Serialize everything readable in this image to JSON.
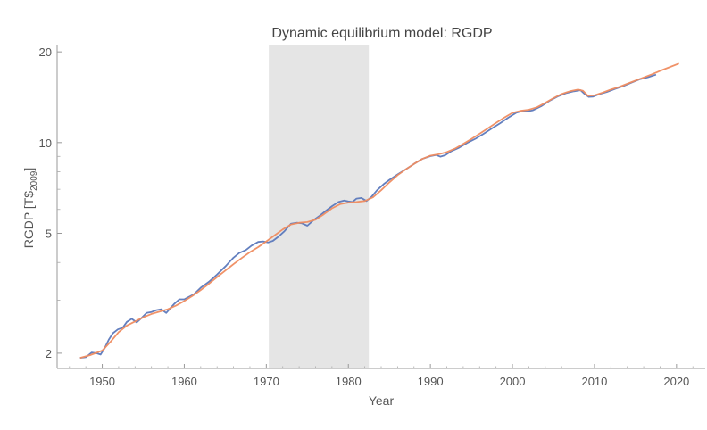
{
  "chart_data": {
    "type": "line",
    "title": "Dynamic equilibrium model: RGDP",
    "xlabel": "Year",
    "ylabel_main": "RGDP [T$",
    "ylabel_sub": "2009",
    "ylabel_close": "]",
    "xlim": [
      1944.5,
      2023.5
    ],
    "ylim": [
      1.78,
      21.0
    ],
    "yscale": "log",
    "x_ticks": [
      1950,
      1960,
      1970,
      1980,
      1990,
      2000,
      2010,
      2020
    ],
    "x_tick_labels": [
      "1950",
      "1960",
      "1970",
      "1980",
      "1990",
      "2000",
      "2010",
      "2020"
    ],
    "y_ticks": [
      2,
      5,
      10,
      20
    ],
    "y_tick_labels": [
      "2",
      "5",
      "10",
      "20"
    ],
    "y_minor_ticks": [
      3,
      4,
      6,
      7,
      8,
      9
    ],
    "shaded_region": {
      "x_start": 1970.3,
      "x_end": 1982.5,
      "color": "#e5e5e5"
    },
    "grid": false,
    "series": [
      {
        "color": "#5b78bc",
        "x": [
          1947.3,
          1948.0,
          1948.7,
          1949.3,
          1949.8,
          1950.3,
          1950.8,
          1951.3,
          1951.9,
          1952.5,
          1953.0,
          1953.6,
          1954.2,
          1954.8,
          1955.4,
          1956.0,
          1956.6,
          1957.2,
          1957.8,
          1958.3,
          1958.8,
          1959.4,
          1960.0,
          1960.6,
          1961.2,
          1962.0,
          1963.0,
          1964.0,
          1965.0,
          1966.0,
          1966.7,
          1967.5,
          1968.2,
          1969.0,
          1969.6,
          1970.2,
          1970.8,
          1971.5,
          1972.2,
          1973.0,
          1973.7,
          1974.3,
          1975.0,
          1975.8,
          1976.5,
          1977.3,
          1978.0,
          1978.8,
          1979.5,
          1980.0,
          1980.5,
          1981.0,
          1981.6,
          1982.2,
          1982.8,
          1983.5,
          1984.3,
          1985.0,
          1986.0,
          1987.0,
          1988.0,
          1989.0,
          1990.0,
          1990.7,
          1991.2,
          1991.8,
          1992.5,
          1993.5,
          1994.5,
          1995.5,
          1996.5,
          1997.5,
          1998.5,
          1999.5,
          2000.5,
          2001.2,
          2001.8,
          2002.5,
          2003.5,
          2004.5,
          2005.5,
          2006.5,
          2007.5,
          2008.3,
          2008.8,
          2009.3,
          2009.8,
          2010.5,
          2011.5,
          2012.5,
          2013.5,
          2014.5,
          2015.5,
          2016.5,
          2017.5
        ],
        "y": [
          1.93,
          1.94,
          2.01,
          2.0,
          1.98,
          2.08,
          2.22,
          2.33,
          2.4,
          2.43,
          2.54,
          2.6,
          2.53,
          2.62,
          2.72,
          2.74,
          2.78,
          2.8,
          2.72,
          2.82,
          2.92,
          3.02,
          3.02,
          3.08,
          3.14,
          3.3,
          3.45,
          3.65,
          3.88,
          4.15,
          4.3,
          4.4,
          4.55,
          4.68,
          4.7,
          4.66,
          4.72,
          4.88,
          5.08,
          5.38,
          5.42,
          5.4,
          5.3,
          5.54,
          5.72,
          5.95,
          6.15,
          6.35,
          6.42,
          6.38,
          6.35,
          6.52,
          6.55,
          6.4,
          6.6,
          6.95,
          7.28,
          7.52,
          7.84,
          8.16,
          8.5,
          8.82,
          9.02,
          9.1,
          8.98,
          9.08,
          9.35,
          9.62,
          9.98,
          10.3,
          10.7,
          11.15,
          11.6,
          12.1,
          12.58,
          12.72,
          12.7,
          12.8,
          13.2,
          13.75,
          14.22,
          14.58,
          14.8,
          14.92,
          14.5,
          14.18,
          14.2,
          14.45,
          14.72,
          15.08,
          15.4,
          15.8,
          16.22,
          16.48,
          16.8
        ]
      },
      {
        "color": "#ef8c60",
        "x": [
          1947.3,
          1948.5,
          1950.0,
          1951.0,
          1952.0,
          1953.0,
          1954.0,
          1955.0,
          1956.0,
          1957.0,
          1958.0,
          1959.0,
          1960.0,
          1961.0,
          1962.0,
          1963.0,
          1964.0,
          1965.0,
          1966.0,
          1967.0,
          1968.0,
          1969.0,
          1970.0,
          1971.0,
          1972.0,
          1973.0,
          1974.0,
          1975.0,
          1976.0,
          1977.0,
          1978.0,
          1979.0,
          1980.0,
          1981.0,
          1982.0,
          1983.0,
          1984.0,
          1985.0,
          1986.0,
          1987.0,
          1988.0,
          1989.0,
          1990.0,
          1991.0,
          1992.0,
          1993.0,
          1994.0,
          1995.0,
          1996.0,
          1997.0,
          1998.0,
          1999.0,
          2000.0,
          2001.0,
          2002.0,
          2003.0,
          2004.0,
          2005.0,
          2006.0,
          2007.0,
          2008.0,
          2008.6,
          2009.2,
          2010.0,
          2011.0,
          2012.0,
          2013.0,
          2014.0,
          2015.0,
          2016.0,
          2017.0,
          2018.0,
          2019.0,
          2020.3
        ],
        "y": [
          1.93,
          1.97,
          2.04,
          2.18,
          2.35,
          2.47,
          2.55,
          2.63,
          2.7,
          2.75,
          2.8,
          2.88,
          2.98,
          3.1,
          3.24,
          3.4,
          3.58,
          3.76,
          3.95,
          4.14,
          4.33,
          4.5,
          4.7,
          4.92,
          5.15,
          5.35,
          5.42,
          5.45,
          5.55,
          5.78,
          6.05,
          6.25,
          6.32,
          6.35,
          6.4,
          6.58,
          6.95,
          7.38,
          7.8,
          8.15,
          8.5,
          8.82,
          9.05,
          9.15,
          9.3,
          9.55,
          9.9,
          10.28,
          10.7,
          11.15,
          11.62,
          12.1,
          12.55,
          12.75,
          12.85,
          13.1,
          13.55,
          14.05,
          14.5,
          14.8,
          15.0,
          14.85,
          14.3,
          14.35,
          14.65,
          15.0,
          15.3,
          15.68,
          16.05,
          16.45,
          16.85,
          17.3,
          17.72,
          18.3
        ]
      }
    ]
  }
}
